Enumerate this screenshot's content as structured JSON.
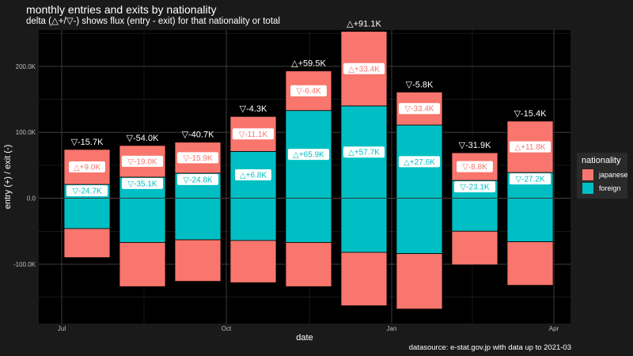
{
  "title": "monthly entries and exits by nationality",
  "subtitle": "delta (△+/▽-) shows flux (entry - exit) for that nationality or total",
  "caption": "datasource: e-stat.gov.jp with data up to 2021-03",
  "chart_data": {
    "type": "bar",
    "stacked": true,
    "xlabel": "date",
    "ylabel": "entry (+) / exit (-)",
    "ylim": [
      -190,
      255
    ],
    "y_ticks": [
      -100,
      0,
      100,
      200
    ],
    "y_tick_labels": [
      "-100.0K",
      "0.0",
      "100.0K",
      "200.0K"
    ],
    "x_ticks": [
      "Jul",
      "Oct",
      "Jan",
      "Apr"
    ],
    "grid": true,
    "legend": {
      "title": "nationality",
      "position": "right"
    },
    "colors": {
      "japanese": "#f8766d",
      "foreign": "#00bfc4",
      "background": "#000000"
    },
    "categories": [
      "2020-07",
      "2020-08",
      "2020-09",
      "2020-10",
      "2020-11",
      "2020-12",
      "2021-01",
      "2021-02",
      "2021-03"
    ],
    "series": [
      {
        "name": "japanese",
        "entry": [
          53,
          48,
          47,
          53,
          60,
          113,
          50,
          42,
          78
        ],
        "exit": [
          -44,
          -67,
          -63,
          -64,
          -67,
          -81,
          -84,
          -51,
          -66
        ],
        "delta_labels": [
          "△+9.0K",
          "▽-19.0K",
          "▽-15.9K",
          "▽-11.1K",
          "▽-6.4K",
          "△+33.4K",
          "▽-33.4K",
          "▽-8.8K",
          "△+11.8K"
        ]
      },
      {
        "name": "foreign",
        "entry": [
          21,
          32,
          38,
          71,
          133,
          140,
          111,
          27,
          39
        ],
        "exit": [
          -46,
          -67,
          -63,
          -64,
          -67,
          -82,
          -84,
          -50,
          -66
        ],
        "delta_labels": [
          "▽-24.7K",
          "▽-35.1K",
          "▽-24.8K",
          "△+6.8K",
          "△+65.9K",
          "△+57.7K",
          "△+27.6K",
          "▽-23.1K",
          "▽-27.2K"
        ]
      }
    ],
    "total_labels": [
      "▽-15.7K",
      "▽-54.0K",
      "▽-40.7K",
      "▽-4.3K",
      "△+59.5K",
      "△+91.1K",
      "▽-5.8K",
      "▽-31.9K",
      "▽-15.4K"
    ],
    "legend_labels": [
      "japanese",
      "foreign"
    ]
  }
}
